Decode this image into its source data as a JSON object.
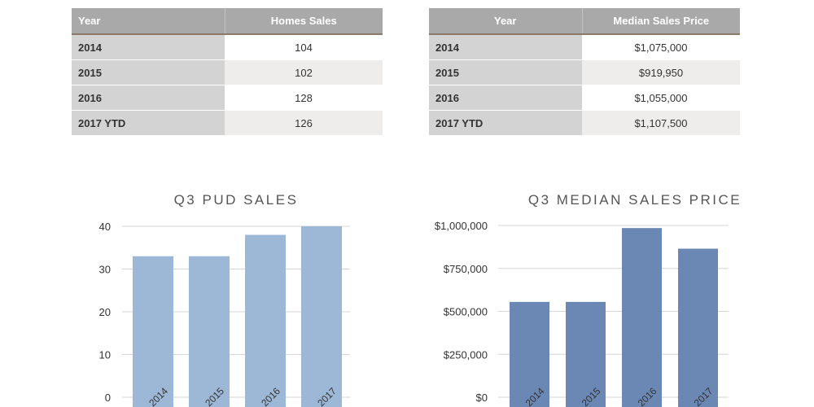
{
  "tables": [
    {
      "headers": [
        "Year",
        "Homes Sales"
      ],
      "rows": [
        [
          "2014",
          "104"
        ],
        [
          "2015",
          "102"
        ],
        [
          "2016",
          "128"
        ],
        [
          "2017 YTD",
          "126"
        ]
      ]
    },
    {
      "headers": [
        "Year",
        "Median Sales Price"
      ],
      "rows": [
        [
          "2014",
          "$1,075,000"
        ],
        [
          "2015",
          "$919,950"
        ],
        [
          "2016",
          "$1,055,000"
        ],
        [
          "2017 YTD",
          "$1,107,500"
        ]
      ]
    }
  ],
  "chart_data": [
    {
      "type": "bar",
      "title": "Q3 PUD SALES",
      "xlabel": "",
      "ylabel": "",
      "categories": [
        "2014",
        "2015",
        "2016",
        "2017"
      ],
      "values": [
        33,
        33,
        38,
        40
      ],
      "ylim": [
        0,
        40
      ],
      "yticks": [
        "40",
        "30",
        "20",
        "10",
        "0"
      ],
      "tick_values": [
        40,
        30,
        20,
        10,
        0
      ],
      "grid": true,
      "color": "#9db8d7"
    },
    {
      "type": "bar",
      "title": "Q3 MEDIAN SALES PRICE",
      "xlabel": "",
      "ylabel": "",
      "categories": [
        "2014",
        "2015",
        "2016",
        "2017"
      ],
      "values": [
        555000,
        555000,
        985000,
        865000
      ],
      "ylim": [
        0,
        1000000
      ],
      "yticks": [
        "$1,000,000",
        "$750,000",
        "$500,000",
        "$250,000",
        "$0"
      ],
      "tick_values": [
        1000000,
        750000,
        500000,
        250000,
        0
      ],
      "grid": true,
      "color": "#6b88b5"
    }
  ]
}
